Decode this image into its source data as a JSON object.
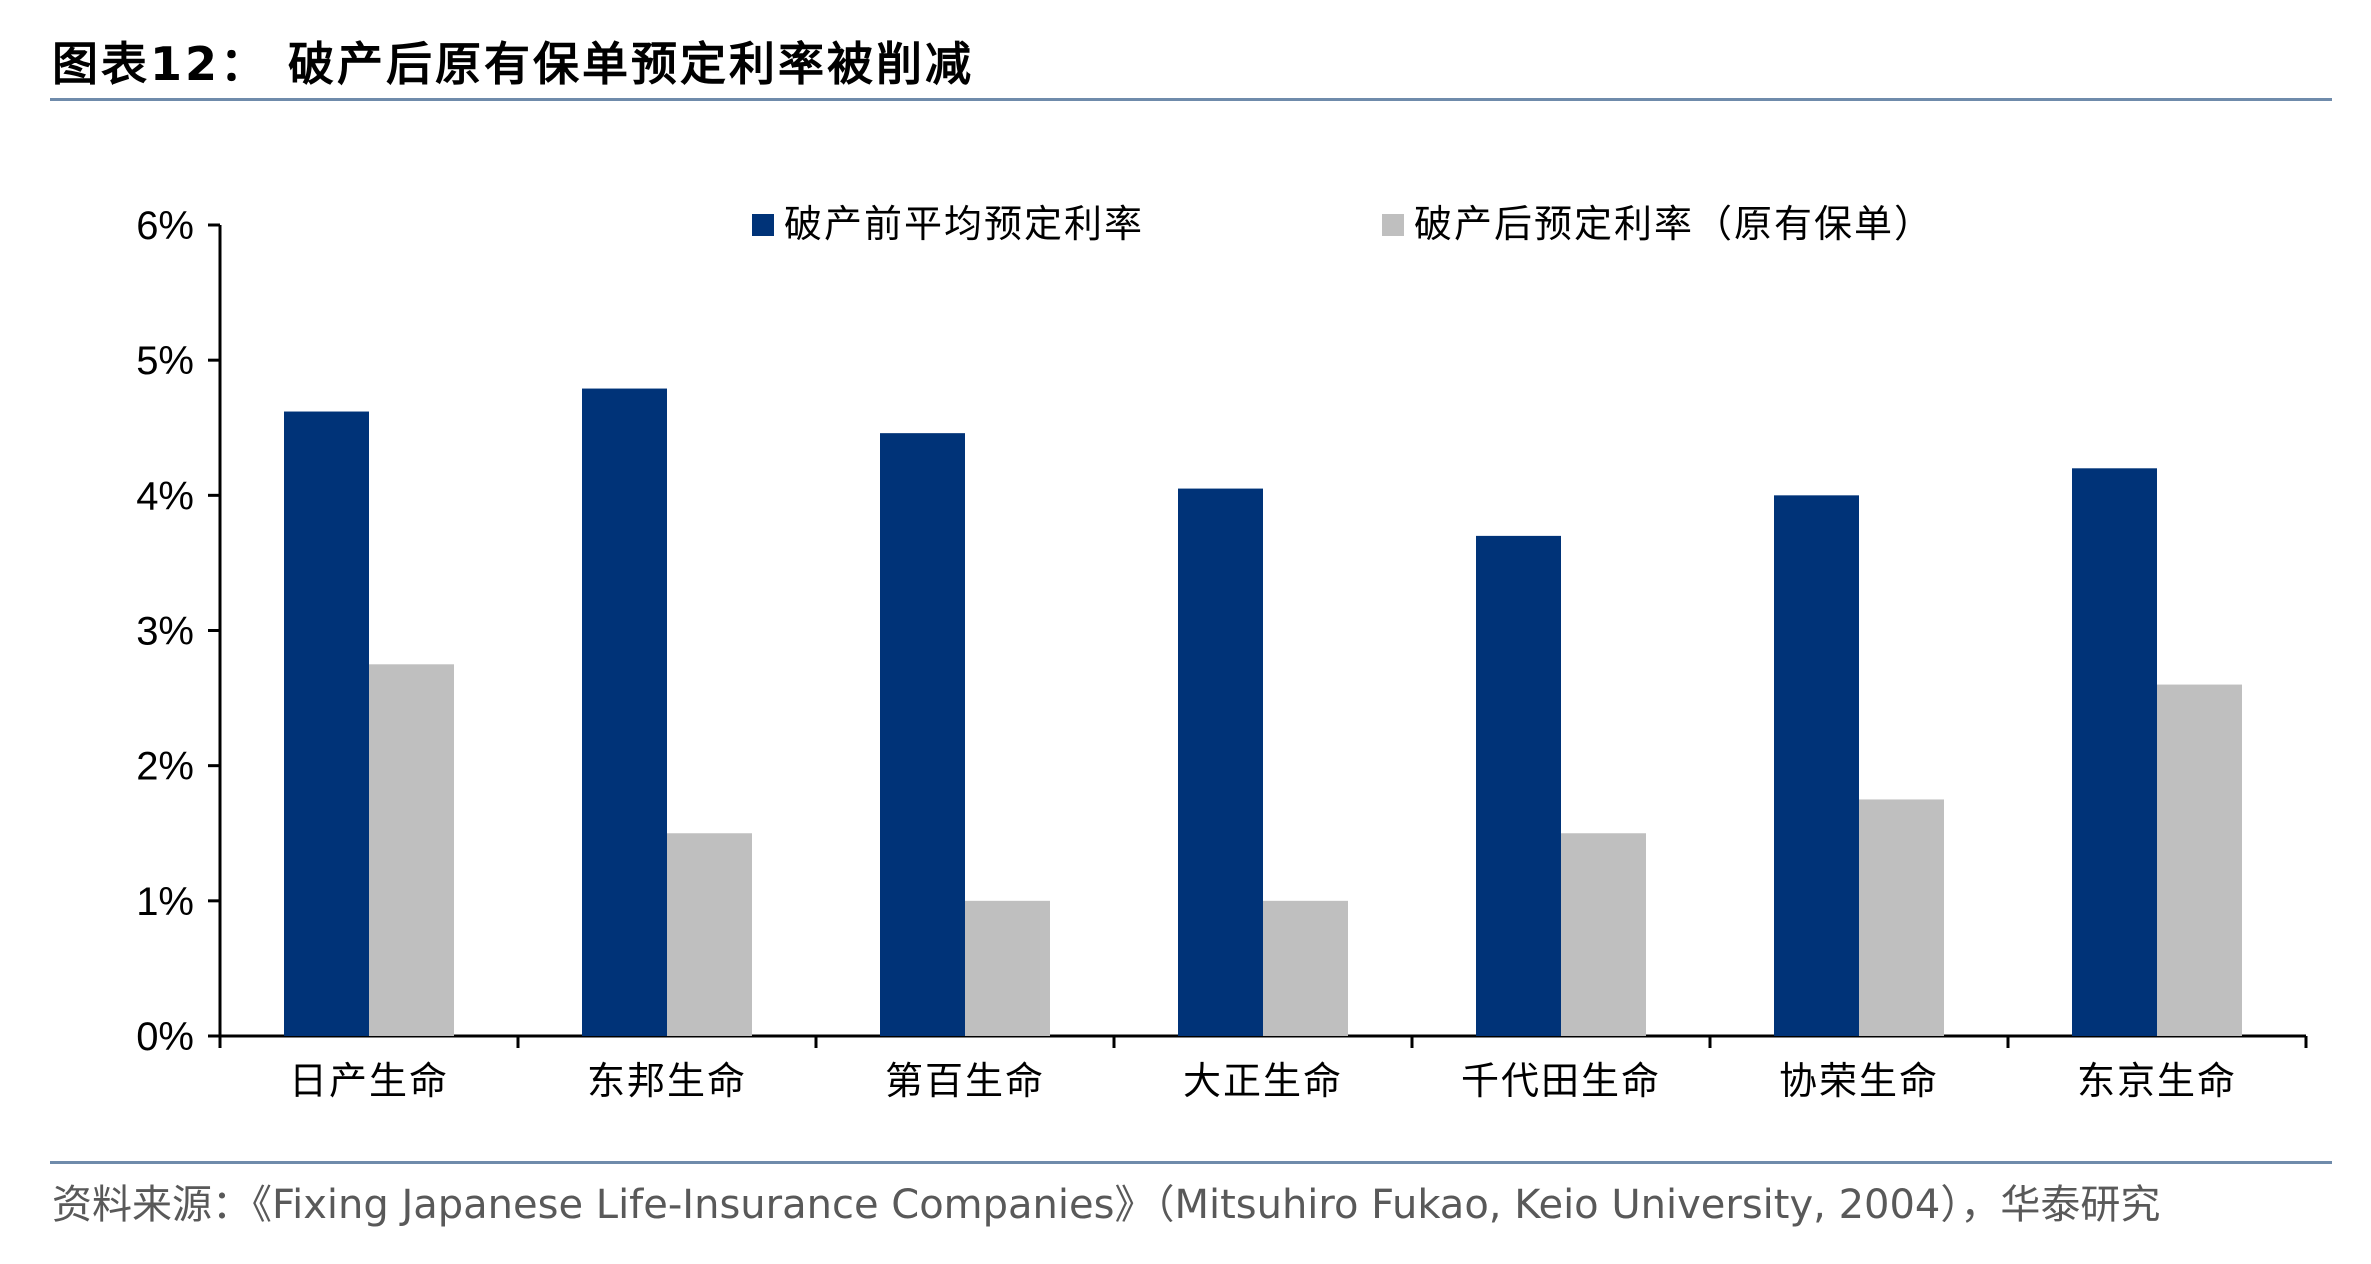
{
  "header": {
    "title": "图表12： 破产后原有保单预定利率被削减"
  },
  "footer": {
    "source": "资料来源：《Fixing Japanese Life-Insurance Companies》（Mitsuhiro Fukao, Keio University, 2004），华泰研究"
  },
  "chart_data": {
    "type": "bar",
    "title": "",
    "xlabel": "",
    "ylabel": "",
    "ylim": [
      0,
      6
    ],
    "y_ticks": [
      "0%",
      "1%",
      "2%",
      "3%",
      "4%",
      "5%",
      "6%"
    ],
    "grid": false,
    "legend_position": "top",
    "categories": [
      "日产生命",
      "东邦生命",
      "第百生命",
      "大正生命",
      "千代田生命",
      "协荣生命",
      "东京生命"
    ],
    "series": [
      {
        "name": "破产前平均预定利率",
        "color": "#003378",
        "values": [
          4.62,
          4.79,
          4.46,
          4.05,
          3.7,
          4.0,
          4.2
        ]
      },
      {
        "name": "破产后预定利率（原有保单）",
        "color": "#bfbfbf",
        "values": [
          2.75,
          1.5,
          1.0,
          1.0,
          1.5,
          1.75,
          2.6
        ]
      }
    ]
  }
}
